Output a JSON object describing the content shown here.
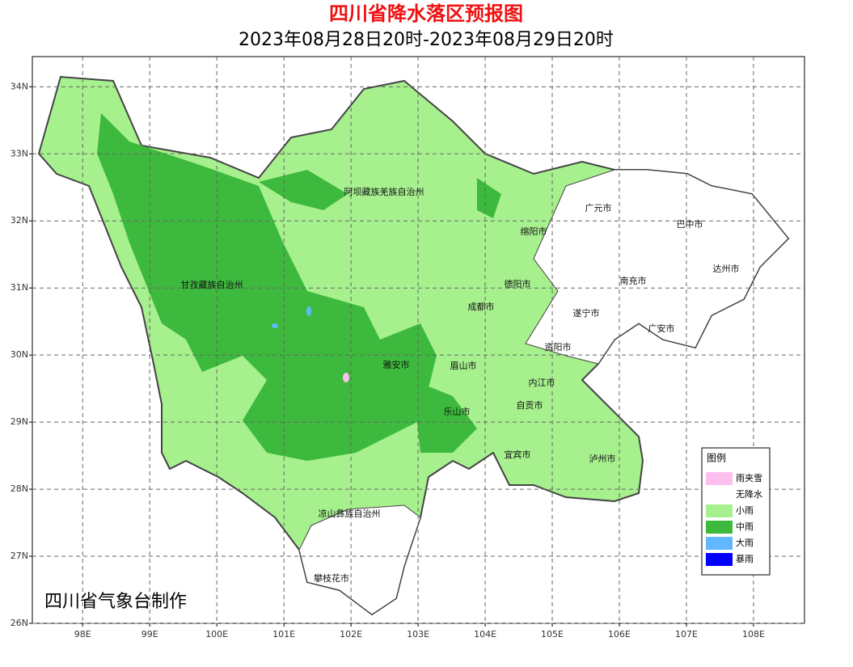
{
  "map": {
    "title": "四川省降水落区预报图",
    "subtitle": "2023年08月28日20时-2023年08月29日20时",
    "xlim": [
      97.25,
      108.76
    ],
    "ylim": [
      26,
      34.45
    ],
    "lon_ticks": [
      {
        "value": 98,
        "label": "98E"
      },
      {
        "value": 99,
        "label": "99E"
      },
      {
        "value": 100,
        "label": "100E"
      },
      {
        "value": 101,
        "label": "101E"
      },
      {
        "value": 102,
        "label": "102E"
      },
      {
        "value": 103,
        "label": "103E"
      },
      {
        "value": 104,
        "label": "104E"
      },
      {
        "value": 105,
        "label": "105E"
      },
      {
        "value": 106,
        "label": "106E"
      },
      {
        "value": 107,
        "label": "107E"
      },
      {
        "value": 108,
        "label": "108E"
      }
    ],
    "lat_ticks": [
      {
        "value": 26,
        "label": "26N"
      },
      {
        "value": 27,
        "label": "27N"
      },
      {
        "value": 28,
        "label": "28N"
      },
      {
        "value": 29,
        "label": "29N"
      },
      {
        "value": 30,
        "label": "30N"
      },
      {
        "value": 31,
        "label": "31N"
      },
      {
        "value": 32,
        "label": "32N"
      },
      {
        "value": 33,
        "label": "33N"
      },
      {
        "value": 34,
        "label": "34N"
      }
    ],
    "grid": true,
    "places": [
      "阿坝藏族羌族自治州",
      "甘孜藏族自治州",
      "绵阳市",
      "广元市",
      "巴中市",
      "达州市",
      "南充市",
      "德阳市",
      "成都市",
      "遂宁市",
      "广安市",
      "资阳市",
      "雅安市",
      "眉山市",
      "内江市",
      "自贡市",
      "乐山市",
      "宜宾市",
      "泸州市",
      "凉山彝族自治州",
      "攀枝花市"
    ],
    "legend": {
      "title": "图例",
      "items": [
        {
          "label": "雨夹雪",
          "color": "#ffbfee"
        },
        {
          "label": "无降水",
          "color": "#ffffff"
        },
        {
          "label": "小雨",
          "color": "#a6f08e"
        },
        {
          "label": "中雨",
          "color": "#3dba3d"
        },
        {
          "label": "大雨",
          "color": "#61b8ff"
        },
        {
          "label": "暴雨",
          "color": "#0000fe"
        }
      ]
    },
    "credit": "四川省气象台制作"
  }
}
